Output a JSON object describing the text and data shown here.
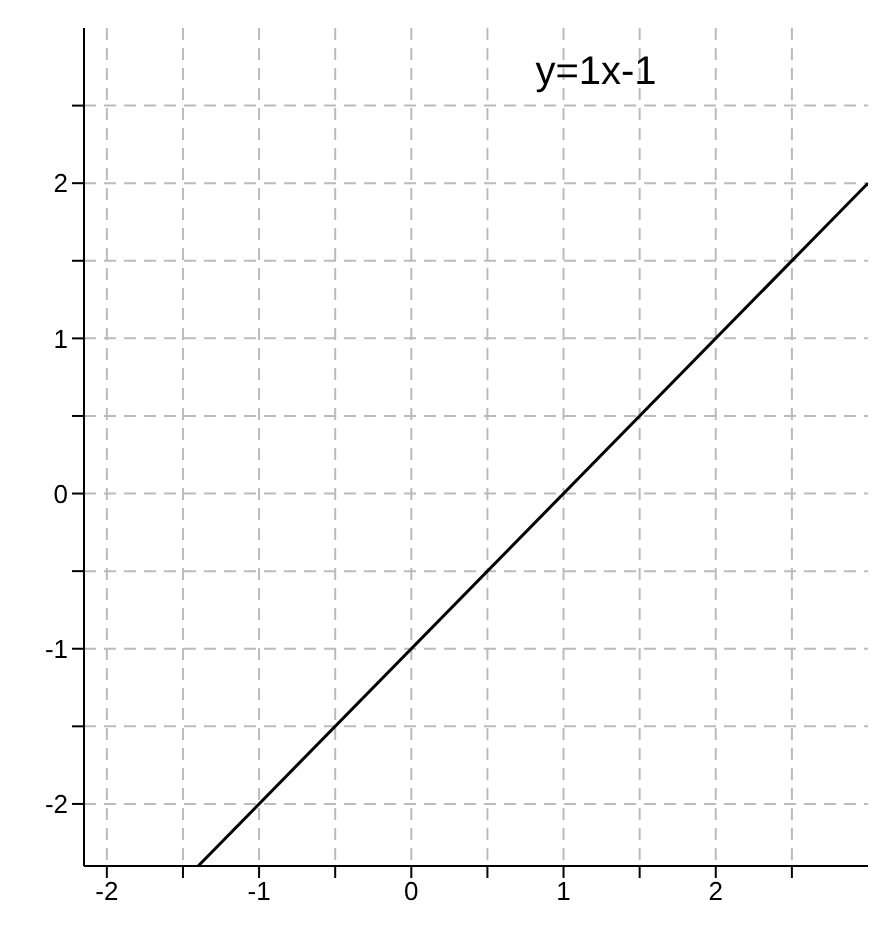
{
  "chart_data": {
    "type": "line",
    "title": "y=1x-1",
    "x": [
      -1.4,
      3
    ],
    "series": [
      {
        "color": "#000000",
        "values": [
          -2.4,
          2
        ]
      }
    ],
    "xlim": [
      -2.15,
      3
    ],
    "ylim": [
      -2.4,
      3
    ],
    "xticks": [
      -2,
      {
        "value": -1.5,
        "label": null
      },
      -1,
      {
        "value": -0.5,
        "label": null
      },
      0,
      {
        "value": 0.5,
        "label": null
      },
      1,
      {
        "value": 1.5,
        "label": null
      },
      2,
      {
        "value": 2.5,
        "label": null
      }
    ],
    "yticks": [
      -2,
      {
        "value": -1.5,
        "label": null
      },
      -1,
      {
        "value": -0.5,
        "label": null
      },
      0,
      {
        "value": 0.5,
        "label": null
      },
      1,
      {
        "value": 1.5,
        "label": null
      },
      2,
      {
        "value": 2.5,
        "label": null
      }
    ],
    "grid": true,
    "marker": "none",
    "line_style": "solid"
  }
}
